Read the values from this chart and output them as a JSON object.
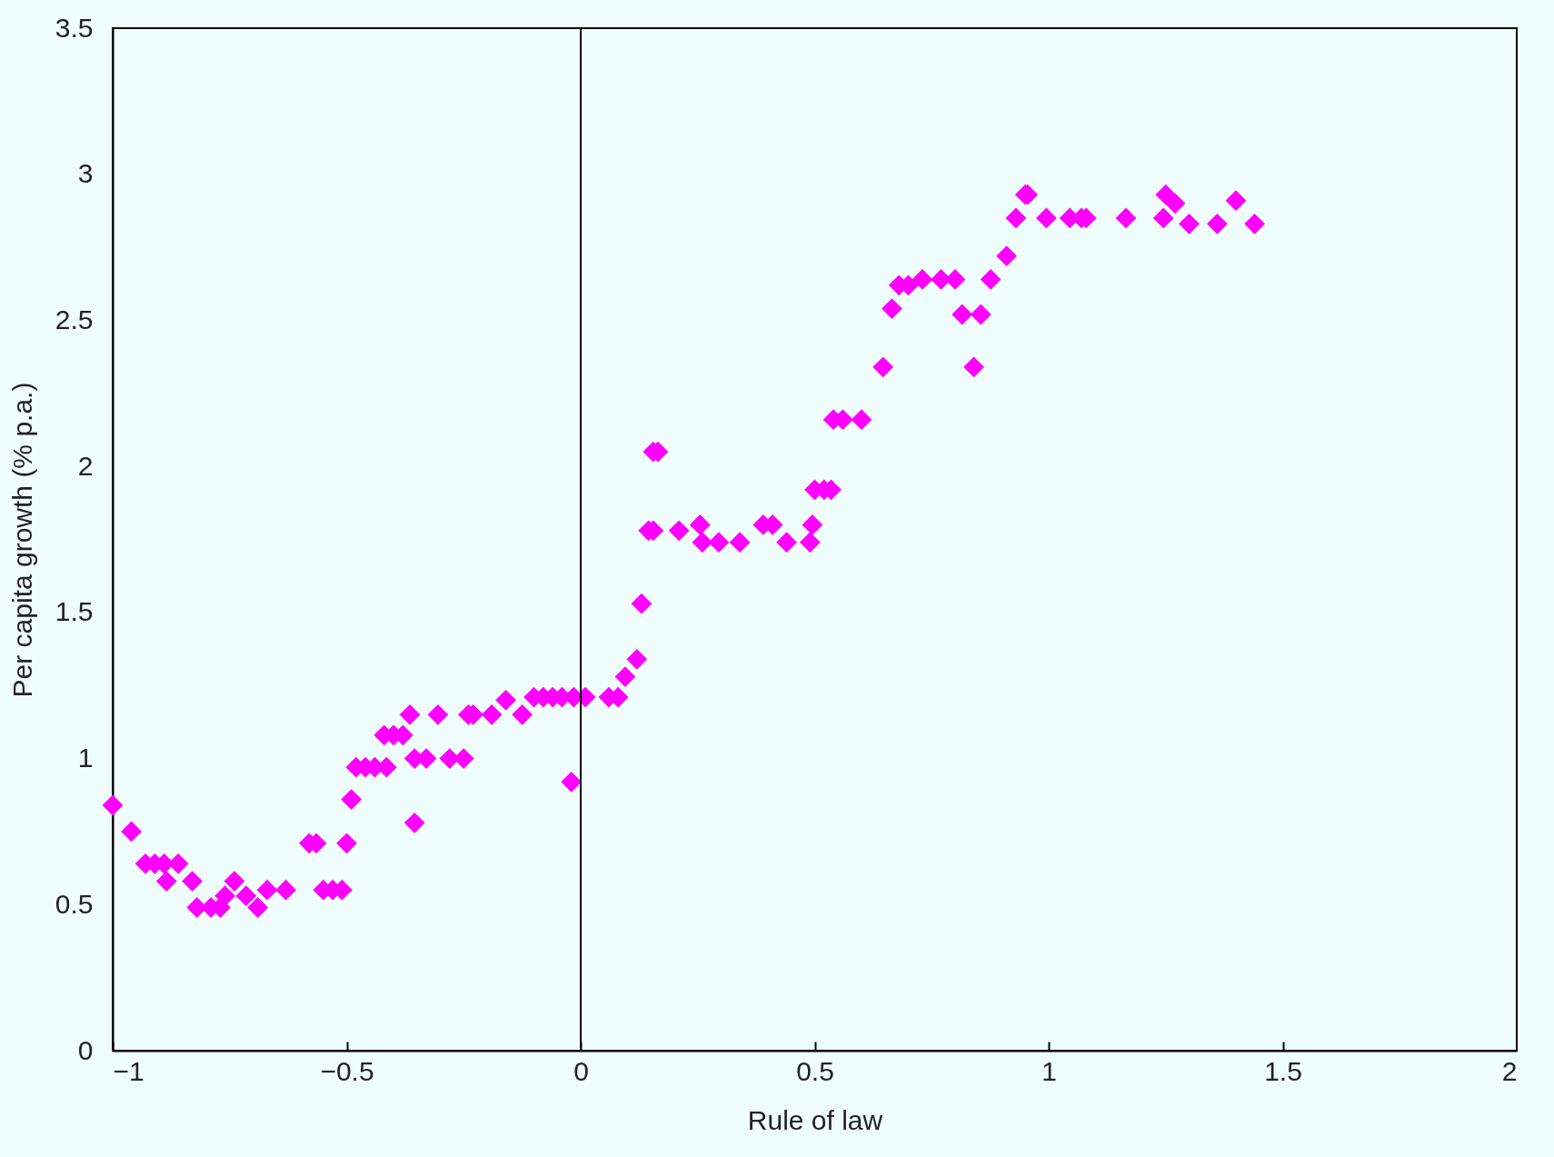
{
  "chart_data": {
    "type": "scatter",
    "xlabel": "Rule of law",
    "ylabel": "Per capita growth (% p.a.)",
    "x": [
      -1.0,
      -0.96,
      -0.93,
      -0.91,
      -0.89,
      -0.885,
      -0.86,
      -0.83,
      -0.82,
      -0.79,
      -0.77,
      -0.76,
      -0.74,
      -0.715,
      -0.69,
      -0.67,
      -0.63,
      -0.58,
      -0.565,
      -0.55,
      -0.53,
      -0.51,
      -0.5,
      -0.49,
      -0.48,
      -0.46,
      -0.44,
      -0.415,
      -0.42,
      -0.4,
      -0.38,
      -0.365,
      -0.355,
      -0.355,
      -0.33,
      -0.305,
      -0.28,
      -0.25,
      -0.24,
      -0.23,
      -0.19,
      -0.16,
      -0.125,
      -0.1,
      -0.08,
      -0.06,
      -0.04,
      -0.015,
      -0.02,
      0.01,
      0.06,
      0.08,
      0.095,
      0.12,
      0.13,
      0.145,
      0.155,
      0.155,
      0.165,
      0.21,
      0.255,
      0.26,
      0.295,
      0.34,
      0.39,
      0.41,
      0.44,
      0.49,
      0.495,
      0.5,
      0.52,
      0.535,
      0.54,
      0.56,
      0.6,
      0.646,
      0.665,
      0.68,
      0.7,
      0.73,
      0.77,
      0.8,
      0.815,
      0.84,
      0.855,
      0.876,
      0.91,
      0.93,
      0.95,
      0.955,
      0.995,
      1.045,
      1.07,
      1.08,
      1.165,
      1.245,
      1.25,
      1.27,
      1.3,
      1.36,
      1.4,
      1.44
    ],
    "values": [
      0.84,
      0.75,
      0.64,
      0.64,
      0.64,
      0.58,
      0.64,
      0.58,
      0.49,
      0.49,
      0.49,
      0.53,
      0.58,
      0.53,
      0.49,
      0.55,
      0.55,
      0.71,
      0.71,
      0.55,
      0.55,
      0.55,
      0.71,
      0.86,
      0.97,
      0.97,
      0.97,
      0.97,
      1.08,
      1.08,
      1.08,
      1.15,
      0.78,
      1.0,
      1.0,
      1.15,
      1.0,
      1.0,
      1.15,
      1.15,
      1.15,
      1.2,
      1.15,
      1.21,
      1.21,
      1.21,
      1.21,
      1.21,
      0.92,
      1.21,
      1.21,
      1.21,
      1.28,
      1.34,
      1.53,
      1.78,
      1.78,
      2.05,
      2.05,
      1.78,
      1.8,
      1.74,
      1.74,
      1.74,
      1.8,
      1.8,
      1.74,
      1.74,
      1.8,
      1.92,
      1.92,
      1.92,
      2.16,
      2.16,
      2.16,
      2.34,
      2.54,
      2.62,
      2.62,
      2.64,
      2.64,
      2.64,
      2.52,
      2.34,
      2.52,
      2.64,
      2.72,
      2.85,
      2.93,
      2.93,
      2.85,
      2.85,
      2.85,
      2.85,
      2.85,
      2.85,
      2.93,
      2.9,
      2.83,
      2.83,
      2.91,
      2.83
    ],
    "color": "#ff00ff",
    "marker": "diamond",
    "xlim": [
      -1,
      2
    ],
    "xticks": [
      {
        "value": -1,
        "label": "−1"
      },
      {
        "value": -0.5,
        "label": "−0.5"
      },
      0,
      0.5,
      1,
      1.5,
      2
    ],
    "ylim": [
      0,
      3.5
    ],
    "yticks": [
      0,
      0.5,
      1,
      1.5,
      2,
      2.5,
      3,
      3.5
    ],
    "ref_lines": [
      {
        "axis": "x",
        "value": 0,
        "color": "#000000"
      }
    ]
  }
}
